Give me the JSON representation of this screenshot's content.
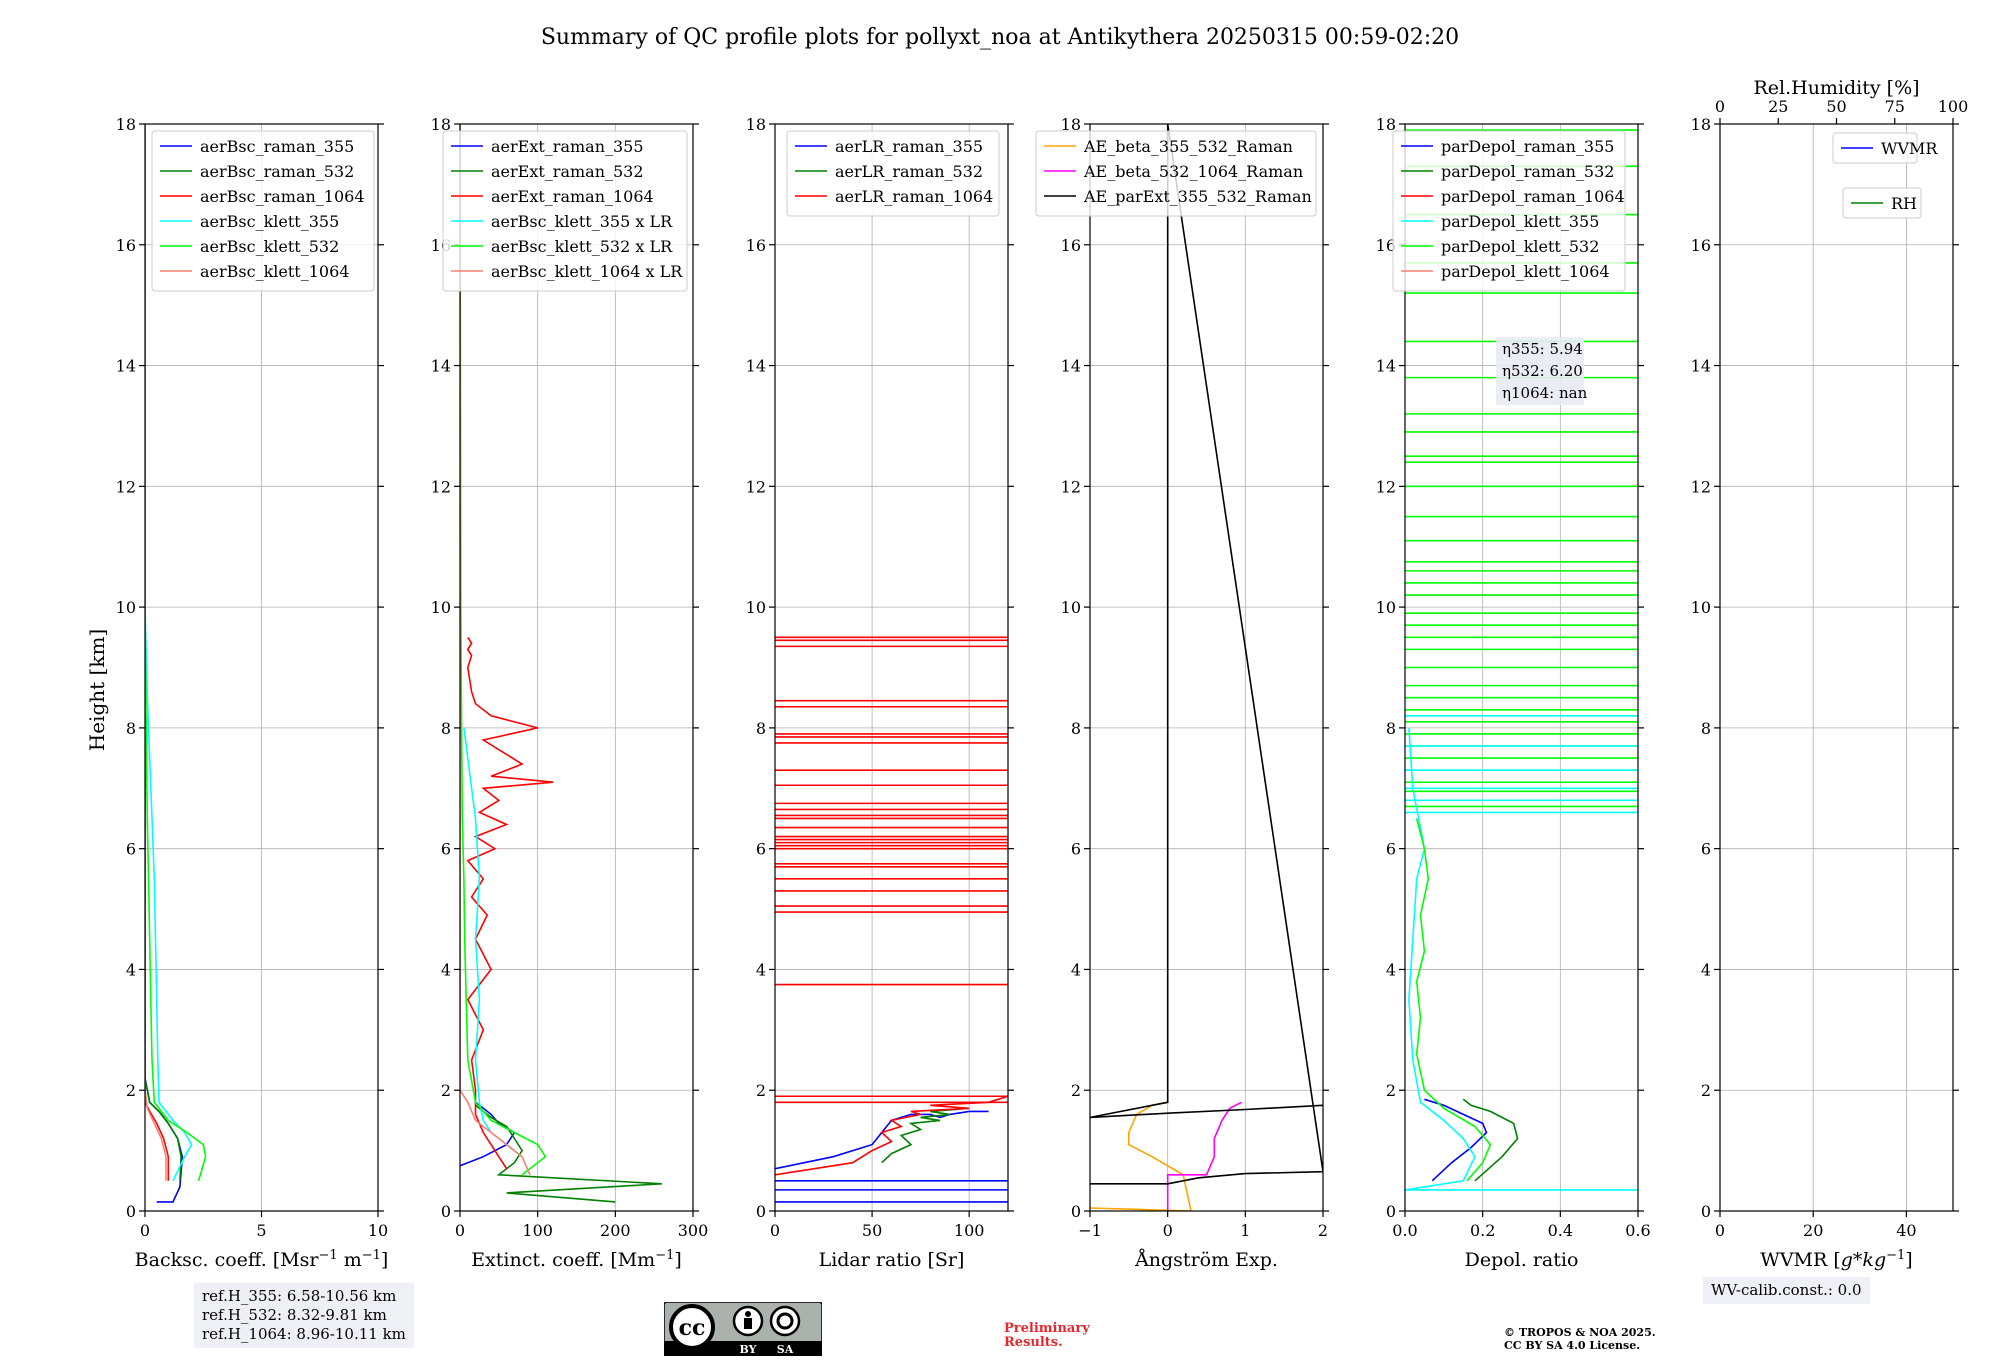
{
  "figure": {
    "title": "Summary of QC profile plots for pollyxt_noa at Antikythera 20250315 00:59-02:20",
    "ylabel": "Height [km]",
    "ref_heights": [
      "ref.H_355: 6.58-10.56 km",
      "ref.H_532: 8.32-9.81 km",
      "ref.H_1064: 8.96-10.11 km"
    ],
    "wv_calib": "WV-calib.const.: 0.0",
    "license_badge": [
      "BY",
      "SA"
    ],
    "preliminary": [
      "Preliminary",
      "Results."
    ],
    "copyright": [
      "© TROPOS & NOA 2025.",
      "CC BY SA 4.0 License."
    ]
  },
  "colors": {
    "blue": "#0000ff",
    "green": "#008000",
    "red": "#ff0000",
    "cyan": "#00ffff",
    "lime": "#00ff00",
    "salmon": "#fa8072",
    "orange": "#ffa500",
    "magenta": "#ff00ff",
    "black": "#000000"
  },
  "chart_data": [
    {
      "type": "line",
      "xlabel": "Backsc. coeff. [Msr$^{-1}$ m$^{-1}$]",
      "xlim": [
        0,
        10
      ],
      "ylim": [
        0,
        18
      ],
      "xticks": [
        0,
        5,
        10
      ],
      "yticks": [
        0,
        2,
        4,
        6,
        8,
        10,
        12,
        14,
        16,
        18
      ],
      "grid": true,
      "legend_position": "upper-right",
      "series": [
        {
          "name": "aerBsc_raman_355",
          "color": "#0000ff",
          "x": [
            0.5,
            1.2,
            1.5,
            1.6,
            1.4,
            1.0,
            0.6,
            0.2,
            0.0,
            0.0
          ],
          "y": [
            0.15,
            0.15,
            0.4,
            0.9,
            1.2,
            1.45,
            1.65,
            1.8,
            2.2,
            18
          ]
        },
        {
          "name": "aerBsc_raman_532",
          "color": "#008000",
          "x": [
            1.5,
            1.55,
            1.4,
            1.0,
            0.6,
            0.2,
            0.0,
            0.0
          ],
          "y": [
            0.5,
            0.9,
            1.2,
            1.45,
            1.65,
            1.8,
            2.2,
            18
          ]
        },
        {
          "name": "aerBsc_raman_1064",
          "color": "#ff0000",
          "x": [
            1.0,
            1.0,
            0.8,
            0.5,
            0.2,
            0.0,
            0.0
          ],
          "y": [
            0.5,
            0.9,
            1.2,
            1.45,
            1.65,
            1.8,
            18
          ]
        },
        {
          "name": "aerBsc_klett_355",
          "color": "#00ffff",
          "x": [
            1.2,
            1.7,
            2.0,
            1.7,
            1.2,
            0.6,
            0.55,
            0.5,
            0.45,
            0.4,
            0.3,
            0.2,
            0.1,
            0.0,
            0.0
          ],
          "y": [
            0.5,
            0.9,
            1.1,
            1.3,
            1.5,
            1.8,
            2.5,
            3.5,
            4.5,
            5.5,
            6.5,
            7.5,
            8.5,
            10,
            18
          ]
        },
        {
          "name": "aerBsc_klett_532",
          "color": "#00ff00",
          "x": [
            2.3,
            2.6,
            2.5,
            1.8,
            1.0,
            0.4,
            0.3,
            0.25,
            0.2,
            0.15,
            0.1,
            0.05,
            0.0,
            0.0
          ],
          "y": [
            0.5,
            0.9,
            1.1,
            1.3,
            1.5,
            1.8,
            2.5,
            3.5,
            4.5,
            5.5,
            6.5,
            8,
            10,
            18
          ]
        },
        {
          "name": "aerBsc_klett_1064",
          "color": "#fa8072",
          "x": [
            0.9,
            0.9,
            0.7,
            0.4,
            0.1,
            0.0,
            0.0
          ],
          "y": [
            0.5,
            0.9,
            1.2,
            1.45,
            1.7,
            2.0,
            18
          ]
        }
      ]
    },
    {
      "type": "line",
      "xlabel": "Extinct. coeff. [Mm$^{-1}$]",
      "xlim": [
        0,
        300
      ],
      "ylim": [
        0,
        18
      ],
      "xticks": [
        0,
        100,
        200,
        300
      ],
      "yticks": [
        0,
        2,
        4,
        6,
        8,
        10,
        12,
        14,
        16,
        18
      ],
      "grid": true,
      "legend_position": "upper-left",
      "series": [
        {
          "name": "aerExt_raman_355",
          "color": "#0000ff",
          "x": [
            0,
            30,
            60,
            70,
            50,
            40,
            30,
            20
          ],
          "y": [
            0.75,
            0.9,
            1.1,
            1.3,
            1.45,
            1.6,
            1.7,
            1.8
          ]
        },
        {
          "name": "aerExt_raman_532",
          "color": "#008000",
          "x": [
            200,
            60,
            260,
            50,
            70,
            80,
            70,
            60,
            40,
            30,
            20
          ],
          "y": [
            0.15,
            0.3,
            0.45,
            0.6,
            0.8,
            1.0,
            1.2,
            1.4,
            1.55,
            1.65,
            1.75
          ]
        },
        {
          "name": "aerExt_raman_1064",
          "color": "#ff0000",
          "x": [
            60,
            50,
            40,
            30,
            20,
            20,
            15,
            30,
            10,
            40,
            20,
            35,
            15,
            30,
            10,
            45,
            20,
            60,
            25,
            50,
            30,
            120,
            40,
            80,
            30,
            100,
            40,
            20,
            15,
            10,
            15,
            10,
            15,
            10
          ],
          "y": [
            0.7,
            0.9,
            1.1,
            1.3,
            1.6,
            2.0,
            2.5,
            3.0,
            3.5,
            4.0,
            4.5,
            4.9,
            5.2,
            5.5,
            5.8,
            6.0,
            6.2,
            6.4,
            6.6,
            6.8,
            7.0,
            7.1,
            7.2,
            7.4,
            7.8,
            8.0,
            8.2,
            8.4,
            8.6,
            9.0,
            9.2,
            9.3,
            9.4,
            9.5
          ]
        },
        {
          "name": "aerBsc_klett_355 x LR",
          "color": "#00ffff",
          "x": [
            80,
            60,
            40,
            30,
            25,
            20,
            25,
            20,
            25,
            20,
            15,
            10,
            5
          ],
          "y": [
            0.9,
            1.1,
            1.3,
            1.5,
            1.8,
            2.5,
            3.5,
            4.5,
            5.5,
            6.5,
            7.0,
            7.5,
            8.0
          ]
        },
        {
          "name": "aerBsc_klett_532 x LR",
          "color": "#00ff00",
          "x": [
            80,
            110,
            100,
            70,
            40,
            20,
            10,
            8,
            6,
            5,
            3,
            2,
            1,
            0
          ],
          "y": [
            0.6,
            0.9,
            1.1,
            1.3,
            1.5,
            1.8,
            2.5,
            3.5,
            4.5,
            5.5,
            6.5,
            8.0,
            10,
            18
          ]
        },
        {
          "name": "aerBsc_klett_1064 x LR",
          "color": "#fa8072",
          "x": [
            90,
            80,
            60,
            40,
            20,
            10,
            0,
            0
          ],
          "y": [
            0.6,
            0.9,
            1.1,
            1.3,
            1.5,
            1.8,
            2.0,
            18
          ]
        }
      ]
    },
    {
      "type": "line",
      "xlabel": "Lidar ratio [Sr]",
      "xlim": [
        0,
        120
      ],
      "ylim": [
        0,
        18
      ],
      "xticks": [
        0,
        50,
        100
      ],
      "yticks": [
        0,
        2,
        4,
        6,
        8,
        10,
        12,
        14,
        16,
        18
      ],
      "grid": true,
      "legend_position": "upper-right",
      "series": [
        {
          "name": "aerLR_raman_355",
          "color": "#0000ff",
          "x": [
            0,
            30,
            50,
            55,
            60,
            65,
            70,
            75,
            80,
            85,
            90,
            100,
            110
          ],
          "y": [
            0.7,
            0.9,
            1.1,
            1.3,
            1.5,
            1.55,
            1.6,
            1.6,
            1.6,
            1.55,
            1.6,
            1.65,
            1.65
          ]
        },
        {
          "name": "aerLR_raman_532",
          "color": "#008000",
          "x": [
            55,
            60,
            70,
            65,
            75,
            70,
            85,
            75,
            90,
            80,
            100
          ],
          "y": [
            0.8,
            0.95,
            1.1,
            1.25,
            1.35,
            1.45,
            1.5,
            1.55,
            1.6,
            1.65,
            1.7
          ]
        },
        {
          "name": "aerLR_raman_1064",
          "color": "#ff0000",
          "x": [
            0,
            40,
            50,
            60,
            55,
            65,
            60,
            75,
            70,
            100,
            80,
            110,
            120
          ],
          "y": [
            0.6,
            0.8,
            1.0,
            1.15,
            1.3,
            1.4,
            1.5,
            1.6,
            1.65,
            1.7,
            1.75,
            1.8,
            1.9
          ]
        }
      ],
      "horizontal_spikes": [
        {
          "color": "#ff0000",
          "y": [
            1.9,
            1.8,
            3.75,
            4.95,
            5.05,
            5.3,
            5.5,
            5.7,
            5.75,
            6.0,
            6.05,
            6.1,
            6.15,
            6.2,
            6.35,
            6.5,
            6.55,
            6.65,
            6.75,
            7.05,
            7.3,
            7.75,
            7.85,
            7.9,
            8.35,
            8.45,
            9.35,
            9.45,
            9.5
          ]
        },
        {
          "color": "#0000ff",
          "y": [
            0.15,
            0.35,
            0.5
          ]
        }
      ]
    },
    {
      "type": "line",
      "xlabel": "Ångström Exp.",
      "xlim": [
        -1,
        2
      ],
      "ylim": [
        0,
        18
      ],
      "xticks": [
        -1,
        0,
        1,
        2
      ],
      "yticks": [
        0,
        2,
        4,
        6,
        8,
        10,
        12,
        14,
        16,
        18
      ],
      "grid": true,
      "legend_position": "upper-right",
      "series": [
        {
          "name": "AE_beta_355_532_Raman",
          "color": "#ffa500",
          "x": [
            -1,
            0.3,
            0.2,
            -0.2,
            -0.5,
            -0.5,
            -0.4,
            -0.2,
            0.0
          ],
          "y": [
            0.05,
            0.0,
            0.6,
            0.9,
            1.1,
            1.3,
            1.6,
            1.75,
            1.8
          ]
        },
        {
          "name": "AE_beta_532_1064_Raman",
          "color": "#ff00ff",
          "x": [
            0.0,
            0.0,
            0.5,
            0.6,
            0.6,
            0.7,
            0.8,
            0.95
          ],
          "y": [
            0.0,
            0.6,
            0.6,
            0.9,
            1.2,
            1.5,
            1.7,
            1.8
          ]
        },
        {
          "name": "AE_parExt_355_532_Raman",
          "color": "#000000",
          "x": [
            -1,
            0.0,
            0.4,
            1.0,
            2.0,
            2.0,
            0.0,
            0.0,
            -1.0,
            0.0,
            1.0,
            2.0
          ],
          "y": [
            0.45,
            0.45,
            0.55,
            0.62,
            0.65,
            0.65,
            18.0,
            1.8,
            1.55,
            1.62,
            1.68,
            1.75
          ]
        }
      ]
    },
    {
      "type": "line",
      "xlabel": "Depol. ratio",
      "xlim": [
        0,
        0.6
      ],
      "ylim": [
        0,
        18
      ],
      "xticks": [
        0.0,
        0.2,
        0.4,
        0.6
      ],
      "yticks": [
        0,
        2,
        4,
        6,
        8,
        10,
        12,
        14,
        16,
        18
      ],
      "grid": true,
      "legend_position": "upper-left",
      "annotation": [
        "η355: 5.94",
        "η532: 6.20",
        "η1064: nan"
      ],
      "series": [
        {
          "name": "parDepol_raman_355",
          "color": "#0000ff",
          "x": [
            0.07,
            0.12,
            0.17,
            0.21,
            0.2,
            0.15,
            0.1,
            0.05
          ],
          "y": [
            0.5,
            0.8,
            1.05,
            1.3,
            1.45,
            1.6,
            1.75,
            1.85
          ]
        },
        {
          "name": "parDepol_raman_532",
          "color": "#008000",
          "x": [
            0.18,
            0.25,
            0.29,
            0.28,
            0.22,
            0.17,
            0.15
          ],
          "y": [
            0.5,
            0.9,
            1.2,
            1.45,
            1.65,
            1.75,
            1.85
          ]
        },
        {
          "name": "parDepol_raman_1064",
          "color": "#ff0000",
          "x": [],
          "y": []
        },
        {
          "name": "parDepol_klett_355",
          "color": "#00ffff",
          "x": [
            0.6,
            0.0,
            0.15,
            0.18,
            0.15,
            0.1,
            0.04,
            0.02,
            0.01,
            0.02,
            0.03,
            0.05,
            0.02,
            0.01
          ],
          "y": [
            0.35,
            0.35,
            0.5,
            0.9,
            1.2,
            1.5,
            1.8,
            2.5,
            3.5,
            4.5,
            5.5,
            6.0,
            7.0,
            8.0
          ]
        },
        {
          "name": "parDepol_klett_532",
          "color": "#00ff00",
          "x": [
            0.16,
            0.2,
            0.22,
            0.18,
            0.1,
            0.05,
            0.03,
            0.04,
            0.03,
            0.05,
            0.04,
            0.06,
            0.05,
            0.03
          ],
          "y": [
            0.5,
            0.8,
            1.1,
            1.4,
            1.7,
            2.0,
            2.6,
            3.2,
            3.8,
            4.3,
            4.9,
            5.5,
            6.0,
            6.5
          ]
        },
        {
          "name": "parDepol_klett_1064",
          "color": "#fa8072",
          "x": [],
          "y": []
        }
      ],
      "horizontal_spikes": [
        {
          "color": "#00ff00",
          "y": [
            6.7,
            6.95,
            7.1,
            7.3,
            7.5,
            7.7,
            7.9,
            8.1,
            8.3,
            8.5,
            8.7,
            9.0,
            9.3,
            9.5,
            9.7,
            9.9,
            10.2,
            10.4,
            10.6,
            10.75,
            11.1,
            11.5,
            12.0,
            12.4,
            12.5,
            12.9,
            13.2,
            13.8,
            14.4,
            15.2,
            15.7,
            16.5,
            17.3,
            17.9
          ]
        },
        {
          "color": "#00ffff",
          "y": [
            6.6,
            6.8,
            7.0,
            7.3,
            7.7,
            8.2
          ]
        }
      ]
    },
    {
      "type": "line",
      "xlabel": "WVMR [$g*kg^{-1}$]",
      "xlim": [
        0,
        50
      ],
      "ylim": [
        0,
        18
      ],
      "xticks": [
        0,
        20,
        40
      ],
      "yticks": [
        0,
        2,
        4,
        6,
        8,
        10,
        12,
        14,
        16,
        18
      ],
      "top_axis": {
        "label": "Rel.Humidity [%]",
        "xlim": [
          0,
          100
        ],
        "xticks": [
          0,
          25,
          50,
          75,
          100
        ]
      },
      "grid": true,
      "legend_position": "upper-right",
      "series": [
        {
          "name": "WVMR",
          "color": "#0000ff",
          "x": [],
          "y": []
        },
        {
          "name": "RH",
          "color": "#008000",
          "x": [],
          "y": []
        }
      ]
    }
  ]
}
